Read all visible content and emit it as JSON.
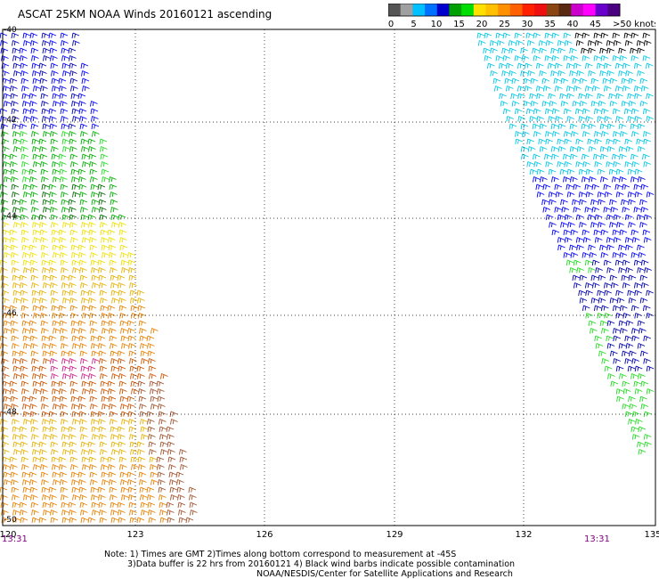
{
  "title": "ASCAT 25KM NOAA Winds 20160121 ascending",
  "colorbar": {
    "labels": [
      "0",
      "5",
      "10",
      "15",
      "20",
      "25",
      "30",
      "35",
      "40",
      "45"
    ],
    "last_label": ">50 knots",
    "colors": [
      "#555555",
      "#a0a0a0",
      "#00c0ff",
      "#0070ff",
      "#0000cc",
      "#00a000",
      "#00dd00",
      "#ffe000",
      "#ffc000",
      "#ff9000",
      "#ff6000",
      "#ff2000",
      "#ee1010",
      "#8b4513",
      "#5a2a10",
      "#cc00cc",
      "#ff00ff",
      "#6a00cc",
      "#4b0082"
    ]
  },
  "map": {
    "lon_labels": [
      "120",
      "123",
      "126",
      "129",
      "132",
      "135"
    ],
    "lat_labels": [
      "-40",
      "-42",
      "-44",
      "-46",
      "-48",
      "-50"
    ],
    "time_left": "13:31",
    "time_right": "13:31",
    "barb_colors": {
      "contaminated": "#000000",
      "light_cyan": "#00c8e8",
      "blue": "#0000ff",
      "dark_blue": "#0000b0",
      "green": "#00b000",
      "light_green": "#22dd22",
      "dark_green": "#006a00",
      "yellow": "#f0e000",
      "gold": "#e8b000",
      "orange": "#e88000",
      "dark_orange": "#cc5500",
      "brown": "#a0522d",
      "magenta": "#d0208a"
    }
  },
  "notes": {
    "line1": "Note: 1) Times are GMT 2)Times along bottom correspond to measurement at -45S",
    "line2": "3)Data buffer is 22 hrs from 20160121 4) Black wind barbs indicate possible contamination",
    "line3": "NOAA/NESDIS/Center for Satellite Applications and Research"
  }
}
